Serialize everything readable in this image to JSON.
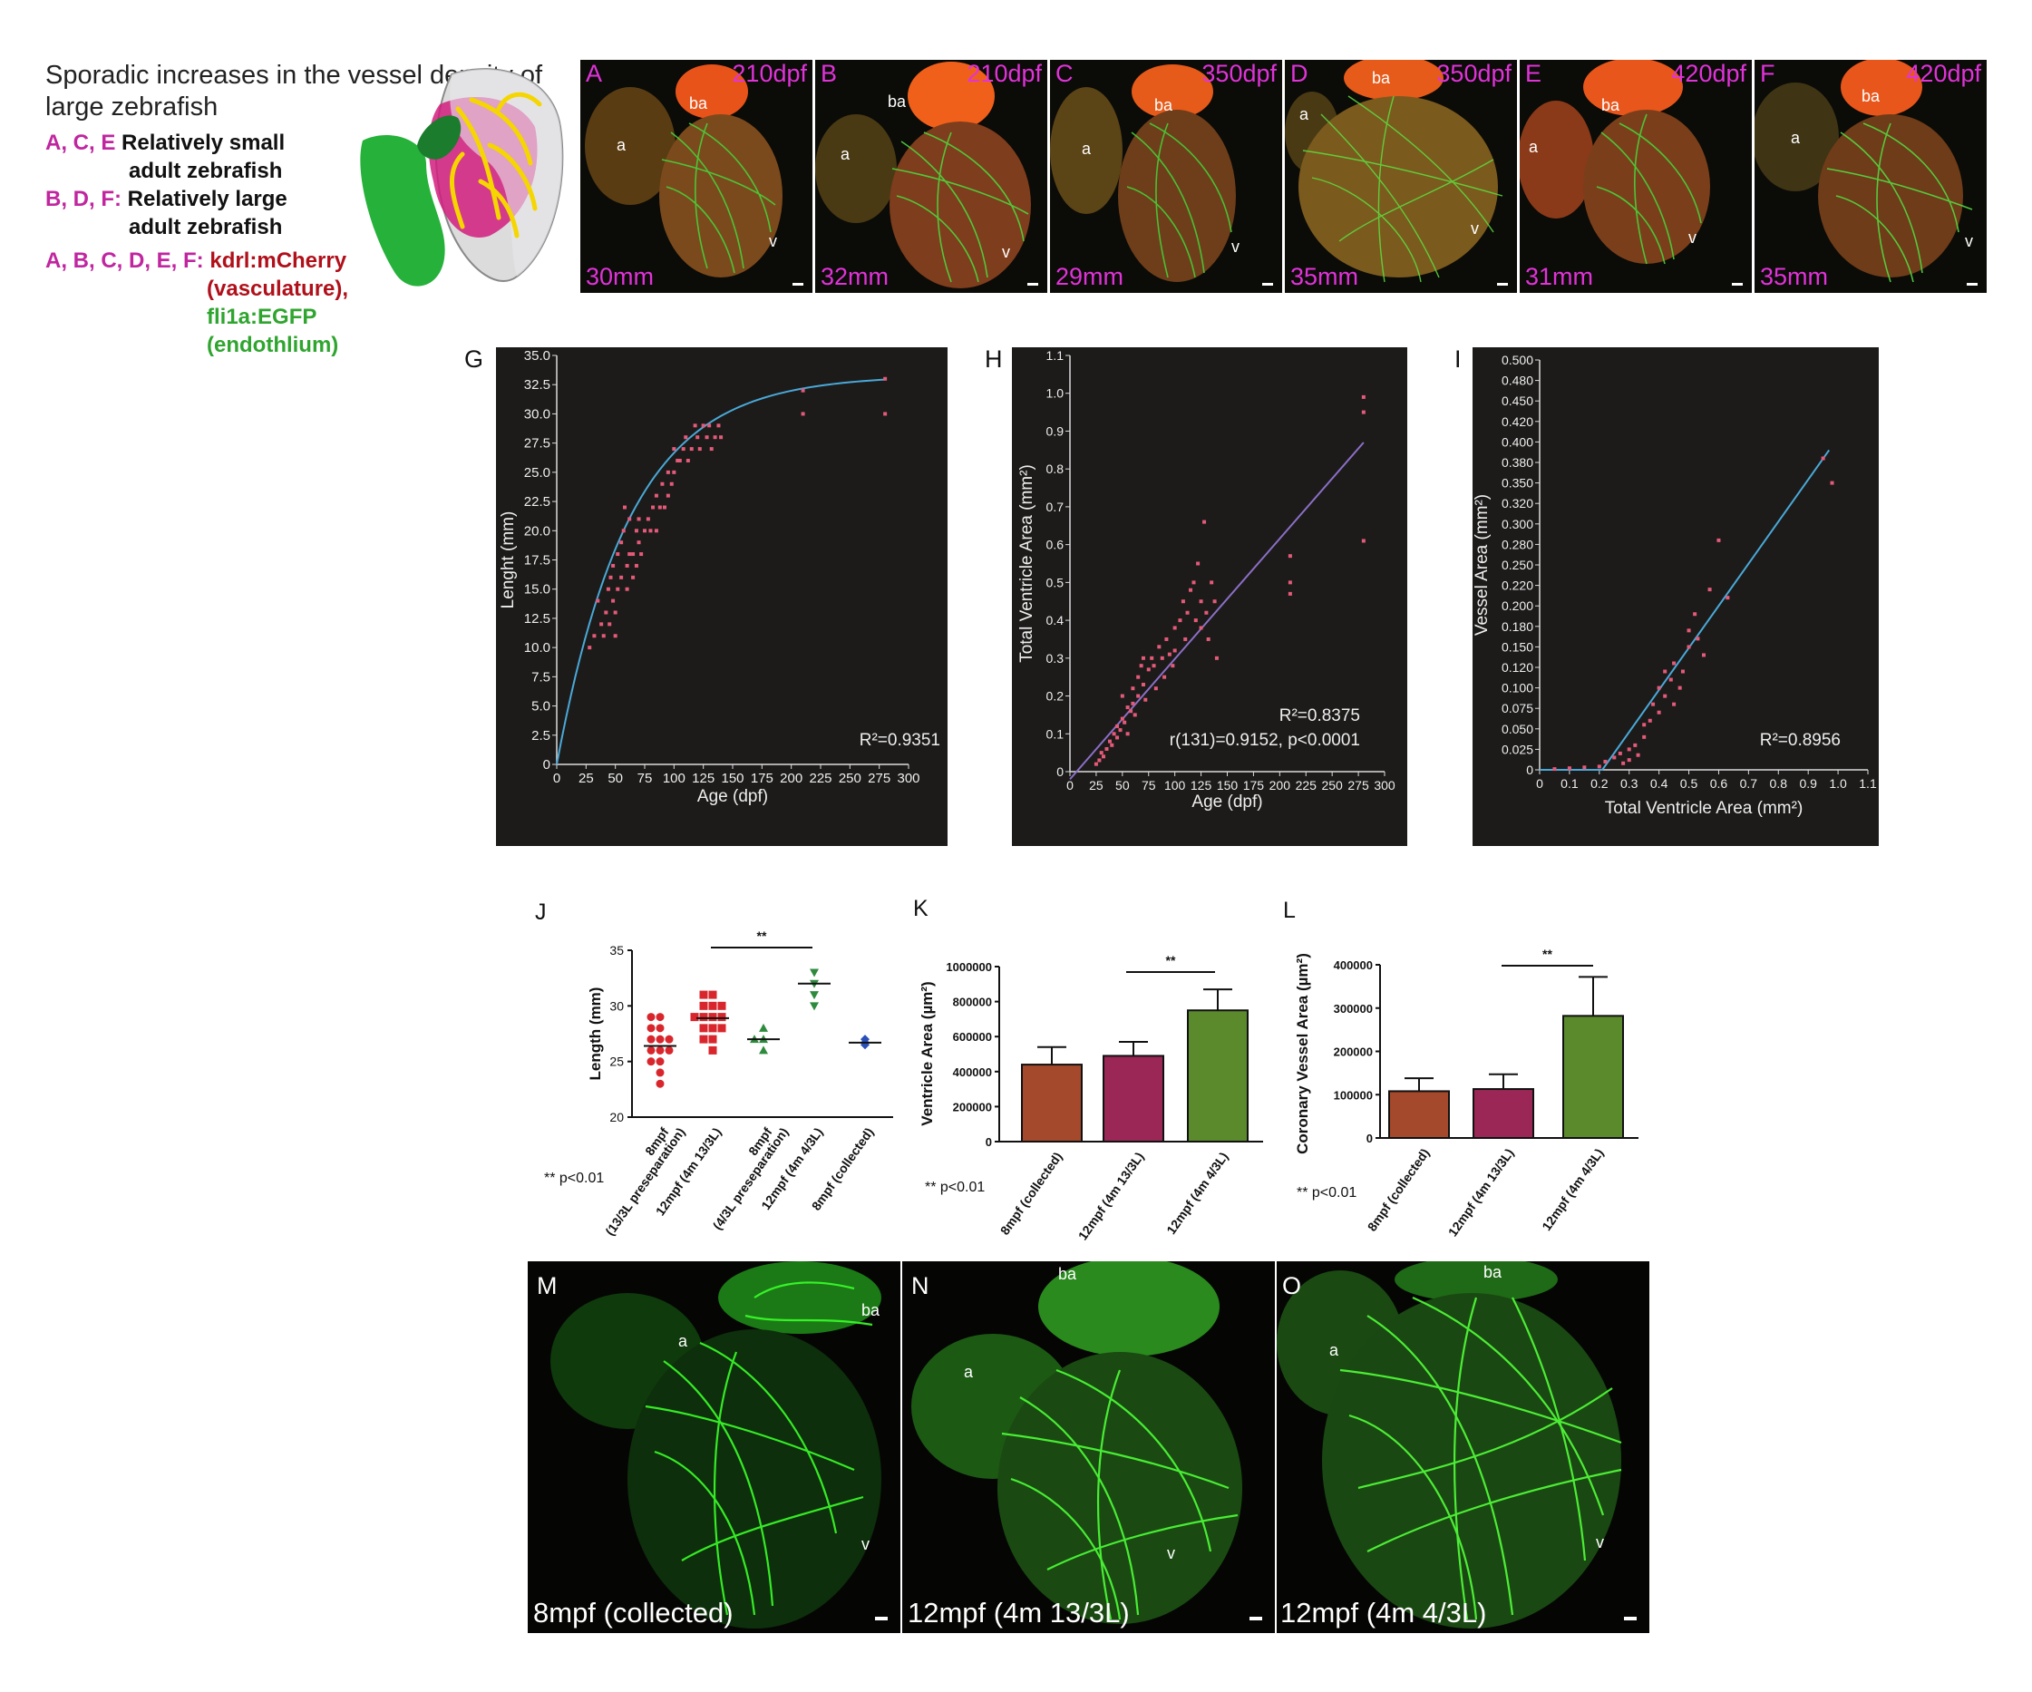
{
  "legend": {
    "title_line1": "Sporadic increases in the vessel density of",
    "title_line2": "large zebrafish",
    "row1_letters": "A, C, E",
    "row1_text1": "Relatively small",
    "row1_text2": "adult zebrafish",
    "row2_letters": "B, D, F:",
    "row2_text1": "Relatively large",
    "row2_text2": "adult zebrafish",
    "row3_letters": "A, B, C, D, E, F:",
    "row3_red1": "kdrl:mCherry",
    "row3_red2": "(vasculature),",
    "row3_green1": "fli1a:EGFP",
    "row3_green2": "(endothlium)"
  },
  "colors": {
    "magenta": "#c0269f",
    "red_label": "#b0101a",
    "green_label": "#2fa52f",
    "chart_bg": "#1c1b1a",
    "fit_blue": "#4aa9d8",
    "fit_purple": "#8c6fc7",
    "point_pink": "#e55a78",
    "bar_brown": "#a4492b",
    "bar_maroon": "#9a2755",
    "bar_green": "#5a8a2c"
  },
  "top_panels": [
    {
      "letter": "A",
      "age": "210dpf",
      "length": "30mm",
      "labels": [
        "ba",
        "a",
        "v"
      ]
    },
    {
      "letter": "B",
      "age": "210dpf",
      "length": "32mm",
      "labels": [
        "ba",
        "a",
        "v"
      ]
    },
    {
      "letter": "C",
      "age": "350dpf",
      "length": "29mm",
      "labels": [
        "ba",
        "a",
        "v"
      ]
    },
    {
      "letter": "D",
      "age": "350dpf",
      "length": "35mm",
      "labels": [
        "ba",
        "a",
        "v"
      ]
    },
    {
      "letter": "E",
      "age": "420dpf",
      "length": "31mm",
      "labels": [
        "ba",
        "a",
        "v"
      ]
    },
    {
      "letter": "F",
      "age": "420dpf",
      "length": "35mm",
      "labels": [
        "ba",
        "a",
        "v"
      ]
    }
  ],
  "bottom_panels": [
    {
      "letter": "M",
      "caption": "8mpf (collected)",
      "labels": [
        "ba",
        "a",
        "v"
      ]
    },
    {
      "letter": "N",
      "caption": "12mpf (4m 13/3L)",
      "labels": [
        "ba",
        "a",
        "v"
      ]
    },
    {
      "letter": "O",
      "caption": "12mpf (4m 4/3L)",
      "labels": [
        "ba",
        "a",
        "v"
      ]
    }
  ],
  "chart_data": [
    {
      "id": "G",
      "type": "scatter",
      "xlabel": "Age (dpf)",
      "ylabel": "Lenght (mm)",
      "xlim": [
        0,
        300
      ],
      "ylim": [
        0,
        35
      ],
      "xticks": [
        "0",
        "25",
        "50",
        "75",
        "100",
        "125",
        "150",
        "175",
        "200",
        "225",
        "250",
        "275",
        "300"
      ],
      "yticks": [
        "0",
        "2.5",
        "5.0",
        "7.5",
        "10.0",
        "12.5",
        "15.0",
        "17.5",
        "20.0",
        "22.5",
        "25.0",
        "27.5",
        "30.0",
        "32.5",
        "35.0"
      ],
      "annotation": "R²=0.9351",
      "fit": "exponential-plateau",
      "points": [
        [
          28,
          10
        ],
        [
          32,
          11
        ],
        [
          35,
          14
        ],
        [
          38,
          12
        ],
        [
          40,
          11
        ],
        [
          42,
          13
        ],
        [
          44,
          15
        ],
        [
          45,
          12
        ],
        [
          46,
          16
        ],
        [
          48,
          14
        ],
        [
          48,
          17
        ],
        [
          50,
          11
        ],
        [
          50,
          13
        ],
        [
          52,
          15
        ],
        [
          52,
          18
        ],
        [
          55,
          16
        ],
        [
          55,
          19
        ],
        [
          57,
          20
        ],
        [
          58,
          22
        ],
        [
          60,
          15
        ],
        [
          60,
          17
        ],
        [
          62,
          18
        ],
        [
          62,
          21
        ],
        [
          65,
          16
        ],
        [
          65,
          18
        ],
        [
          68,
          17
        ],
        [
          68,
          20
        ],
        [
          70,
          19
        ],
        [
          70,
          21
        ],
        [
          72,
          18
        ],
        [
          75,
          20
        ],
        [
          78,
          21
        ],
        [
          80,
          20
        ],
        [
          82,
          22
        ],
        [
          85,
          20
        ],
        [
          85,
          23
        ],
        [
          88,
          22
        ],
        [
          90,
          24
        ],
        [
          92,
          22
        ],
        [
          95,
          23
        ],
        [
          95,
          25
        ],
        [
          98,
          24
        ],
        [
          100,
          25
        ],
        [
          100,
          27
        ],
        [
          103,
          26
        ],
        [
          105,
          26
        ],
        [
          108,
          27
        ],
        [
          110,
          28
        ],
        [
          112,
          26
        ],
        [
          115,
          27
        ],
        [
          118,
          29
        ],
        [
          120,
          28
        ],
        [
          122,
          27
        ],
        [
          125,
          29
        ],
        [
          128,
          28
        ],
        [
          130,
          29
        ],
        [
          132,
          27
        ],
        [
          135,
          28
        ],
        [
          138,
          29
        ],
        [
          140,
          28
        ],
        [
          210,
          32
        ],
        [
          210,
          30
        ],
        [
          280,
          33
        ],
        [
          280,
          30
        ]
      ]
    },
    {
      "id": "H",
      "type": "scatter",
      "xlabel": "Age (dpf)",
      "ylabel": "Total Ventricle Area (mm²)",
      "xlim": [
        0,
        300
      ],
      "ylim": [
        0,
        1.1
      ],
      "xticks": [
        "0",
        "25",
        "50",
        "75",
        "100",
        "125",
        "150",
        "175",
        "200",
        "225",
        "250",
        "275",
        "300"
      ],
      "yticks": [
        "0",
        "0.1",
        "0.2",
        "0.3",
        "0.4",
        "0.5",
        "0.6",
        "0.7",
        "0.8",
        "0.9",
        "1.0",
        "1.1"
      ],
      "annotations": [
        "R²=0.8375",
        "r(131)=0.9152, p<0.0001"
      ],
      "fit": "linear",
      "points": [
        [
          25,
          0.02
        ],
        [
          28,
          0.03
        ],
        [
          30,
          0.05
        ],
        [
          32,
          0.04
        ],
        [
          35,
          0.06
        ],
        [
          38,
          0.08
        ],
        [
          40,
          0.07
        ],
        [
          42,
          0.1
        ],
        [
          45,
          0.09
        ],
        [
          45,
          0.12
        ],
        [
          48,
          0.11
        ],
        [
          50,
          0.14
        ],
        [
          50,
          0.2
        ],
        [
          52,
          0.13
        ],
        [
          55,
          0.17
        ],
        [
          55,
          0.1
        ],
        [
          58,
          0.16
        ],
        [
          60,
          0.22
        ],
        [
          60,
          0.18
        ],
        [
          62,
          0.15
        ],
        [
          65,
          0.25
        ],
        [
          65,
          0.2
        ],
        [
          68,
          0.28
        ],
        [
          70,
          0.23
        ],
        [
          70,
          0.3
        ],
        [
          72,
          0.19
        ],
        [
          75,
          0.27
        ],
        [
          78,
          0.3
        ],
        [
          80,
          0.28
        ],
        [
          82,
          0.22
        ],
        [
          85,
          0.33
        ],
        [
          88,
          0.3
        ],
        [
          90,
          0.25
        ],
        [
          92,
          0.35
        ],
        [
          95,
          0.31
        ],
        [
          98,
          0.28
        ],
        [
          100,
          0.32
        ],
        [
          100,
          0.38
        ],
        [
          105,
          0.4
        ],
        [
          108,
          0.45
        ],
        [
          110,
          0.35
        ],
        [
          112,
          0.42
        ],
        [
          115,
          0.48
        ],
        [
          118,
          0.5
        ],
        [
          120,
          0.4
        ],
        [
          122,
          0.55
        ],
        [
          125,
          0.38
        ],
        [
          125,
          0.45
        ],
        [
          128,
          0.66
        ],
        [
          130,
          0.42
        ],
        [
          132,
          0.35
        ],
        [
          135,
          0.5
        ],
        [
          138,
          0.45
        ],
        [
          140,
          0.3
        ],
        [
          210,
          0.57
        ],
        [
          210,
          0.5
        ],
        [
          210,
          0.47
        ],
        [
          280,
          0.99
        ],
        [
          280,
          0.95
        ],
        [
          280,
          0.61
        ]
      ]
    },
    {
      "id": "I",
      "type": "scatter",
      "xlabel": "Total Ventricle Area (mm²)",
      "ylabel": "Vessel Area (mm²)",
      "xlim": [
        0,
        1.1
      ],
      "ylim": [
        0,
        0.5
      ],
      "xticks": [
        "0",
        "0.1",
        "0.2",
        "0.3",
        "0.4",
        "0.5",
        "0.6",
        "0.7",
        "0.8",
        "0.9",
        "1.0",
        "1.1"
      ],
      "yticks": [
        "0",
        "0.025",
        "0.050",
        "0.075",
        "0.100",
        "0.120",
        "0.150",
        "0.180",
        "0.200",
        "0.220",
        "0.250",
        "0.280",
        "0.300",
        "0.320",
        "0.350",
        "0.380",
        "0.400",
        "0.420",
        "0.450",
        "0.480",
        "0.500"
      ],
      "annotation": "R²=0.8956",
      "fit": "segmental-linear",
      "points": [
        [
          0.05,
          0.001
        ],
        [
          0.1,
          0.002
        ],
        [
          0.15,
          0.003
        ],
        [
          0.2,
          0.004
        ],
        [
          0.22,
          0.01
        ],
        [
          0.25,
          0.015
        ],
        [
          0.27,
          0.02
        ],
        [
          0.28,
          0.008
        ],
        [
          0.3,
          0.025
        ],
        [
          0.3,
          0.012
        ],
        [
          0.32,
          0.03
        ],
        [
          0.33,
          0.018
        ],
        [
          0.35,
          0.04
        ],
        [
          0.35,
          0.055
        ],
        [
          0.37,
          0.06
        ],
        [
          0.38,
          0.08
        ],
        [
          0.4,
          0.07
        ],
        [
          0.4,
          0.1
        ],
        [
          0.42,
          0.09
        ],
        [
          0.42,
          0.12
        ],
        [
          0.44,
          0.11
        ],
        [
          0.45,
          0.08
        ],
        [
          0.45,
          0.13
        ],
        [
          0.47,
          0.1
        ],
        [
          0.48,
          0.12
        ],
        [
          0.5,
          0.15
        ],
        [
          0.5,
          0.17
        ],
        [
          0.52,
          0.19
        ],
        [
          0.53,
          0.16
        ],
        [
          0.55,
          0.14
        ],
        [
          0.57,
          0.22
        ],
        [
          0.6,
          0.28
        ],
        [
          0.63,
          0.21
        ],
        [
          0.95,
          0.38
        ],
        [
          0.98,
          0.35
        ]
      ]
    },
    {
      "id": "J",
      "type": "scatter",
      "ylabel": "Length (mm)",
      "ylim": [
        20,
        35
      ],
      "yticks": [
        "20",
        "25",
        "30",
        "35"
      ],
      "categories": [
        "8mpf (13/3L preseparation)",
        "12mpf (4m 13/3L)",
        "8mpf (4/3L preseparation)",
        "12mpf (4m 4/3L)",
        "8mpf (collected)"
      ],
      "category_label_lines": [
        [
          "8mpf",
          "(13/3L preseparation)"
        ],
        [
          "12mpf (4m 13/3L)"
        ],
        [
          "8mpf",
          "(4/3L preseparation)"
        ],
        [
          "12mpf (4m 4/3L)"
        ],
        [
          "8mpf (collected)"
        ]
      ],
      "series": [
        {
          "values": [
            29,
            29,
            28,
            28,
            27,
            27,
            27,
            26,
            26,
            26,
            25,
            25,
            24,
            23
          ],
          "mean": 26.4,
          "marker": "circle",
          "color": "#d8262c"
        },
        {
          "values": [
            31,
            31,
            30,
            30,
            30,
            29,
            29,
            29,
            29,
            28,
            28,
            28,
            27,
            27,
            26
          ],
          "mean": 28.9,
          "marker": "square",
          "color": "#d8262c"
        },
        {
          "values": [
            28,
            27,
            27,
            26
          ],
          "mean": 27,
          "marker": "triangle-up",
          "color": "#2e8b3e"
        },
        {
          "values": [
            33,
            32,
            31,
            30
          ],
          "mean": 32,
          "marker": "triangle-down",
          "color": "#2e8b3e"
        },
        {
          "values": [
            27,
            26.7,
            26.5
          ],
          "mean": 26.7,
          "marker": "diamond",
          "color": "#2a4fb8"
        }
      ],
      "significance": "**",
      "footnote": "** p<0.01"
    },
    {
      "id": "K",
      "type": "bar",
      "ylabel": "Ventricle Area (µm²)",
      "ylim": [
        0,
        1000000
      ],
      "yticks": [
        "0",
        "200000",
        "400000",
        "600000",
        "800000",
        "1000000"
      ],
      "categories": [
        "8mpf (collected)",
        "12mpf (4m 13/3L)",
        "12mpf (4m 4/3L)"
      ],
      "values": [
        440000,
        490000,
        750000
      ],
      "errors": [
        100000,
        80000,
        120000
      ],
      "significance": "**",
      "footnote": "** p<0.01"
    },
    {
      "id": "L",
      "type": "bar",
      "ylabel": "Coronary Vessel Area (µm²)",
      "ylim": [
        0,
        400000
      ],
      "yticks": [
        "0",
        "100000",
        "200000",
        "300000",
        "400000"
      ],
      "categories": [
        "8mpf (collected)",
        "12mpf (4m 13/3L)",
        "12mpf (4m 4/3L)"
      ],
      "values": [
        108000,
        113000,
        282000
      ],
      "errors": [
        30000,
        34000,
        90000
      ],
      "significance": "**",
      "footnote": "** p<0.01"
    }
  ]
}
